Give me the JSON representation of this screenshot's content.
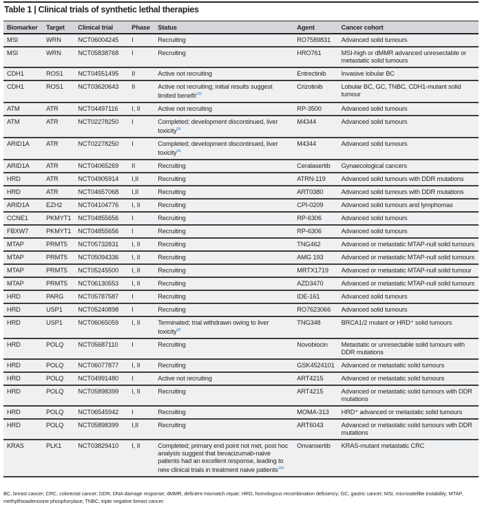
{
  "title": "Table 1 | Clinical trials of synthetic lethal therapies",
  "columns": [
    "Biomarker",
    "Target",
    "Clinical trial",
    "Phase",
    "Status",
    "Agent",
    "Cancer cohort"
  ],
  "rows": [
    {
      "biomarker": "MSI",
      "target": "WRN",
      "trial": "NCT06004245",
      "phase": "I",
      "status": "Recruiting",
      "ref": "",
      "agent": "RO7589831",
      "cohort": "Advanced solid tumours"
    },
    {
      "biomarker": "MSI",
      "target": "WRN",
      "trial": "NCT05838768",
      "phase": "I",
      "status": "Recruiting",
      "ref": "",
      "agent": "HRO761",
      "cohort": "MSI-high or dMMR advanced unresectable or metastatic solid tumours"
    },
    {
      "biomarker": "CDH1",
      "target": "ROS1",
      "trial": "NCT04551495",
      "phase": "II",
      "status": "Active not recruiting",
      "ref": "",
      "agent": "Entrectinib",
      "cohort": "Invasive lobular BC"
    },
    {
      "biomarker": "CDH1",
      "target": "ROS1",
      "trial": "NCT03620643",
      "phase": "II",
      "status": "Active not recruiting; initial results suggest limited benefit",
      "ref": "195",
      "agent": "Crizotinib",
      "cohort": "Lobular BC, GC, TNBC, CDH1-mutant solid tumour"
    },
    {
      "biomarker": "ATM",
      "target": "ATR",
      "trial": "NCT04497116",
      "phase": "I, II",
      "status": "Active not recruiting",
      "ref": "",
      "agent": "RP-3500",
      "cohort": "Advanced solid tumours"
    },
    {
      "biomarker": "ATM",
      "target": "ATR",
      "trial": "NCT02278250",
      "phase": "I",
      "status": "Completed; development discontinued, liver toxicity",
      "ref": "99",
      "agent": "M4344",
      "cohort": "Advanced solid tumours"
    },
    {
      "biomarker": "ARID1A",
      "target": "ATR",
      "trial": "NCT02278250",
      "phase": "I",
      "status": "Completed; development discontinued, liver toxicity",
      "ref": "99",
      "agent": "M4344",
      "cohort": "Advanced solid tumours"
    },
    {
      "biomarker": "ARID1A",
      "target": "ATR",
      "trial": "NCT04065269",
      "phase": "II",
      "status": "Recruiting",
      "ref": "",
      "agent": "Ceralasertib",
      "cohort": "Gynaecological cancers"
    },
    {
      "biomarker": "HRD",
      "target": "ATR",
      "trial": "NCT04905914",
      "phase": "I,II",
      "status": "Recruiting",
      "ref": "",
      "agent": "ATRN-119",
      "cohort": "Advanced solid tumours with DDR mutations"
    },
    {
      "biomarker": "HRD",
      "target": "ATR",
      "trial": "NCT04657068",
      "phase": "I,II",
      "status": "Recruiting",
      "ref": "",
      "agent": "ART0380",
      "cohort": "Advanced solid tumours with DDR mutations"
    },
    {
      "biomarker": "ARID1A",
      "target": "EZH2",
      "trial": "NCT04104776",
      "phase": "I, II",
      "status": "Recruiting",
      "ref": "",
      "agent": "CPI-0209",
      "cohort": "Advanced solid tumours and lymphomas"
    },
    {
      "biomarker": "CCNE1",
      "target": "PKMYT1",
      "trial": "NCT04855656",
      "phase": "I",
      "status": "Recruiting",
      "ref": "",
      "agent": "RP-6306",
      "cohort": "Advanced solid tumours"
    },
    {
      "biomarker": "FBXW7",
      "target": "PKMYT1",
      "trial": "NCT04855656",
      "phase": "I",
      "status": "Recruiting",
      "ref": "",
      "agent": "RP-6306",
      "cohort": "Advanced solid tumours"
    },
    {
      "biomarker": "MTAP",
      "target": "PRMT5",
      "trial": "NCT05732831",
      "phase": "I, II",
      "status": "Recruiting",
      "ref": "",
      "agent": "TNG462",
      "cohort": "Advanced or metastatic MTAP-null solid tumours"
    },
    {
      "biomarker": "MTAP",
      "target": "PRMT5",
      "trial": "NCT05094336",
      "phase": "I, II",
      "status": "Recruiting",
      "ref": "",
      "agent": "AMG 193",
      "cohort": "Advanced or metastatic MTAP-null solid tumours"
    },
    {
      "biomarker": "MTAP",
      "target": "PRMT5",
      "trial": "NCT05245500",
      "phase": "I, II",
      "status": "Recruiting",
      "ref": "",
      "agent": "MRTX1719",
      "cohort": "Advanced or metastatic MTAP-null solid tumour"
    },
    {
      "biomarker": "MTAP",
      "target": "PRMT5",
      "trial": "NCT06130553",
      "phase": "I, II",
      "status": "Recruiting",
      "ref": "",
      "agent": "AZD3470",
      "cohort": "Advanced or metastatic MTAP-null solid tumours"
    },
    {
      "biomarker": "HRD",
      "target": "PARG",
      "trial": "NCT05787587",
      "phase": "I",
      "status": "Recruiting",
      "ref": "",
      "agent": "IDE-161",
      "cohort": "Advanced solid tumours"
    },
    {
      "biomarker": "HRD",
      "target": "USP1",
      "trial": "NCT05240898",
      "phase": "I",
      "status": "Recruiting",
      "ref": "",
      "agent": "RO7623066",
      "cohort": "Advanced solid tumours"
    },
    {
      "biomarker": "HRD",
      "target": "USP1",
      "trial": "NCT06065059",
      "phase": "I, II",
      "status": "Terminated; trial withdrawn owing to liver toxicity",
      "ref": "98",
      "agent": "TNG348",
      "cohort": "BRCA1/2 mutant or HRD⁺ solid tumours"
    },
    {
      "biomarker": "HRD",
      "target": "POLQ",
      "trial": "NCT05687110",
      "phase": "I",
      "status": "Recruiting",
      "ref": "",
      "agent": "Novobiocin",
      "cohort": "Metastatic or unresectable solid tumours with DDR mutations"
    },
    {
      "biomarker": "HRD",
      "target": "POLQ",
      "trial": "NCT06077877",
      "phase": "I, II",
      "status": "Recruiting",
      "ref": "",
      "agent": "GSK4524101",
      "cohort": "Advanced or metastatic solid tumours"
    },
    {
      "biomarker": "HRD",
      "target": "POLQ",
      "trial": "NCT04991480",
      "phase": "I",
      "status": "Active not recruiting",
      "ref": "",
      "agent": "ART4215",
      "cohort": "Advanced or metastatic solid tumours"
    },
    {
      "biomarker": "HRD",
      "target": "POLQ",
      "trial": "NCT05898399",
      "phase": "I, II",
      "status": "Recruiting",
      "ref": "",
      "agent": "ART4215",
      "cohort": "Advanced or metastatic solid tumours with DDR mutations"
    },
    {
      "biomarker": "HRD",
      "target": "POLQ",
      "trial": "NCT06545942",
      "phase": "I",
      "status": "Recruiting",
      "ref": "",
      "agent": "MOMA-313",
      "cohort": "HRD⁺ advanced or metastatic solid tumours"
    },
    {
      "biomarker": "HRD",
      "target": "POLQ",
      "trial": "NCT05898399",
      "phase": "I,II",
      "status": "Recruiting",
      "ref": "",
      "agent": "ART6043",
      "cohort": "Advanced or metastatic solid tumours with DDR mutations"
    },
    {
      "biomarker": "KRAS",
      "target": "PLK1",
      "trial": "NCT03829410",
      "phase": "I, II",
      "status": "Completed; primary end point not met, post hoc analysis suggest that bevacizumab-naive patients had an excellent response, leading to new clinical trials in treatment naive patients",
      "ref": "196",
      "agent": "Onvansertib",
      "cohort": "KRAS-mutant metastatic CRC"
    }
  ],
  "footnote": "BC, breast cancer; CRC, colorectal cancer; DDR, DNA damage response; dMMR, deficient mismatch repair; HRD, homologous recombination deficiency; GC, gastric cancer; MSI, microsatellite instability; MTAP, methylthioadenosine phosphorylase; TNBC, triple negative breast cancer.",
  "colors": {
    "reference": "#3b7cc4",
    "row_bg": "#eef0f2",
    "header_bg": "#d4d6d9"
  }
}
